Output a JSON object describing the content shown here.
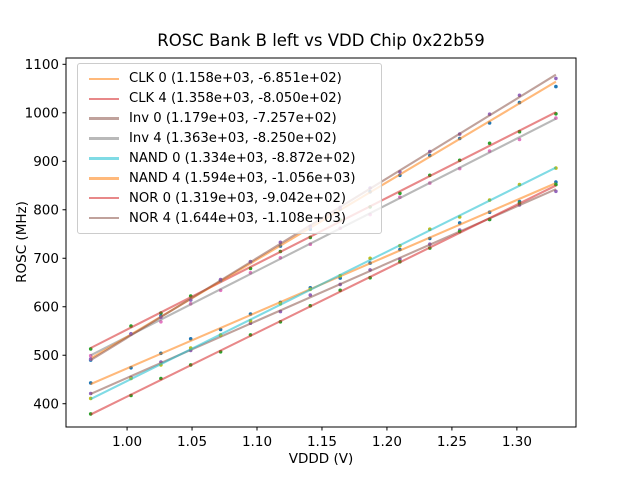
{
  "chart_data": {
    "type": "scatter",
    "title": "ROSC Bank B left vs VDD Chip 0x22b59",
    "xlabel": "VDDD (V)",
    "ylabel": "ROSC (MHz)",
    "xlim": [
      0.953,
      1.3455
    ],
    "ylim": [
      352,
      1113
    ],
    "grid": false,
    "legend_position": "upper left",
    "legend_border_color": "#cccccc",
    "axis_color": "#000000",
    "xticks": {
      "values": [
        1.0,
        1.05,
        1.1,
        1.15,
        1.2,
        1.25,
        1.3
      ],
      "labels": [
        "1.00",
        "1.05",
        "1.10",
        "1.15",
        "1.20",
        "1.25",
        "1.30"
      ]
    },
    "yticks": {
      "values": [
        400,
        500,
        600,
        700,
        800,
        900,
        1000,
        1100
      ],
      "labels": [
        "400",
        "500",
        "600",
        "700",
        "800",
        "900",
        "1000",
        "1100"
      ]
    },
    "x": [
      0.972,
      1.003,
      1.026,
      1.049,
      1.072,
      1.095,
      1.118,
      1.141,
      1.164,
      1.187,
      1.21,
      1.233,
      1.256,
      1.279,
      1.302,
      1.33
    ],
    "series": [
      {
        "name": "CLK 0",
        "legend_label": "CLK 0 (1.158e+03, -6.851e+02)",
        "fit_slope": 1158,
        "fit_intercept": -685.1,
        "marker_color": "#1f77b4",
        "line_color": "rgba(255,127,14,0.55)",
        "y": [
          443,
          474,
          504,
          534,
          553,
          585,
          609,
          639,
          659,
          690,
          718,
          741,
          773,
          795,
          817,
          857
        ]
      },
      {
        "name": "CLK 4",
        "legend_label": "CLK 4 (1.358e+03, -8.050e+02)",
        "fit_slope": 1358,
        "fit_intercept": -805.0,
        "marker_color": "#2ca02c",
        "line_color": "rgba(214,39,40,0.55)",
        "y": [
          513,
          560,
          587,
          622,
          655,
          679,
          714,
          743,
          779,
          806,
          834,
          871,
          902,
          937,
          961,
          998
        ]
      },
      {
        "name": "Inv 0",
        "legend_label": "Inv 0 (1.179e+03, -7.257e+02)",
        "fit_slope": 1179,
        "fit_intercept": -725.7,
        "marker_color": "#9467bd",
        "line_color": "rgba(140,86,75,0.55)",
        "y": [
          421,
          454,
          486,
          510,
          541,
          566,
          590,
          624,
          646,
          676,
          698,
          729,
          758,
          780,
          810,
          838
        ]
      },
      {
        "name": "Inv 4",
        "legend_label": "Inv 4 (1.363e+03, -8.250e+02)",
        "fit_slope": 1363,
        "fit_intercept": -825.0,
        "marker_color": "#e377c2",
        "line_color": "rgba(127,127,127,0.55)",
        "y": [
          499,
          544,
          569,
          606,
          634,
          670,
          701,
          729,
          762,
          790,
          826,
          855,
          885,
          921,
          945,
          989
        ]
      },
      {
        "name": "NAND 0",
        "legend_label": "NAND 0 (1.334e+03, -8.872e+02)",
        "fit_slope": 1334,
        "fit_intercept": -887.2,
        "marker_color": "#bcbd22",
        "line_color": "rgba(23,190,207,0.55)",
        "y": [
          411,
          452,
          480,
          515,
          542,
          571,
          606,
          636,
          664,
          700,
          726,
          760,
          785,
          820,
          852,
          886
        ]
      },
      {
        "name": "NAND 4",
        "legend_label": "NAND 4 (1.594e+03, -1.056e+03)",
        "fit_slope": 1594,
        "fit_intercept": -1056,
        "marker_color": "#1f77b4",
        "line_color": "rgba(255,127,14,0.55)",
        "y": [
          490,
          544,
          581,
          614,
          654,
          693,
          725,
          760,
          801,
          837,
          871,
          912,
          947,
          979,
          1021,
          1054
        ]
      },
      {
        "name": "NOR 0",
        "legend_label": "NOR 0 (1.319e+03, -9.042e+02)",
        "fit_slope": 1319,
        "fit_intercept": -904.2,
        "marker_color": "#2ca02c",
        "line_color": "rgba(214,39,40,0.55)",
        "y": [
          379,
          417,
          452,
          480,
          507,
          542,
          569,
          602,
          634,
          660,
          693,
          721,
          755,
          780,
          814,
          852
        ]
      },
      {
        "name": "NOR 4",
        "legend_label": "NOR 4 (1.644e+03, -1.108e+03)",
        "fit_slope": 1644,
        "fit_intercept": -1108,
        "marker_color": "#9467bd",
        "line_color": "rgba(140,86,75,0.55)",
        "y": [
          492,
          544,
          578,
          614,
          656,
          693,
          733,
          766,
          805,
          845,
          878,
          920,
          956,
          997,
          1036,
          1071
        ]
      }
    ]
  }
}
